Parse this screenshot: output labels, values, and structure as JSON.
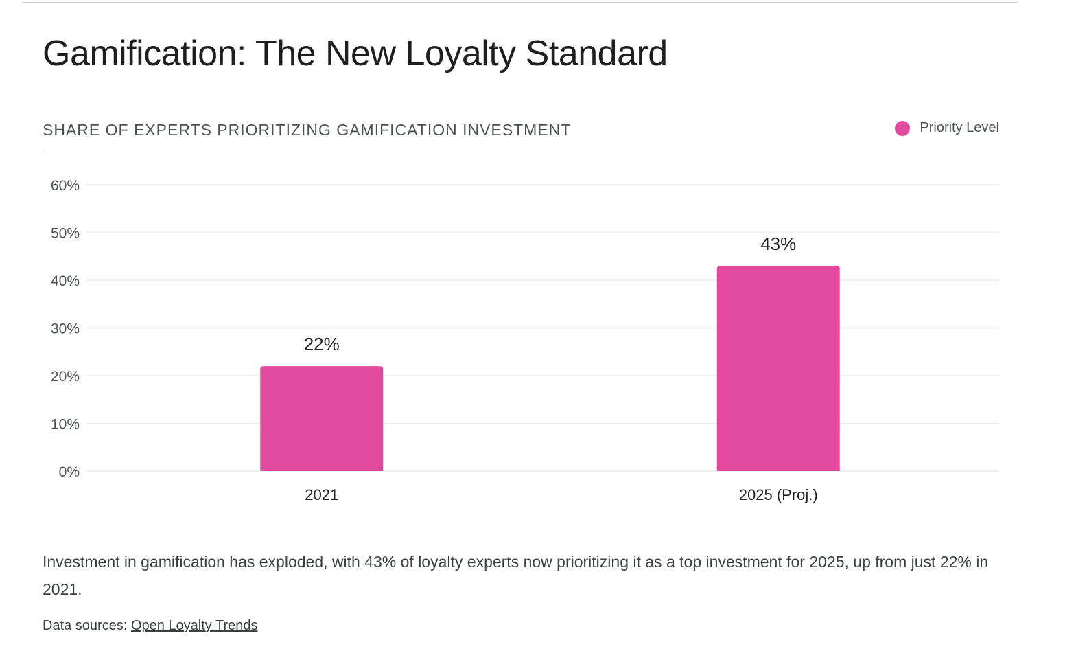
{
  "title": "Gamification: The New Loyalty Standard",
  "chart_data": {
    "type": "bar",
    "title": "SHARE OF EXPERTS PRIORITIZING GAMIFICATION INVESTMENT",
    "categories": [
      "2021",
      "2025 (Proj.)"
    ],
    "series": [
      {
        "name": "Priority Level",
        "values": [
          22,
          43
        ],
        "color": "#e24a9e"
      }
    ],
    "data_labels": [
      "22%",
      "43%"
    ],
    "ylim": [
      0,
      60
    ],
    "yticks": [
      0,
      10,
      20,
      30,
      40,
      50,
      60
    ],
    "ytick_labels": [
      "0%",
      "10%",
      "20%",
      "30%",
      "40%",
      "50%",
      "60%"
    ],
    "grid": true,
    "legend_position": "top-right"
  },
  "description": "Investment in gamification has exploded, with 43% of loyalty experts now prioritizing it as a top investment for 2025, up from just 22% in 2021.",
  "sources": {
    "label": "Data sources:",
    "link_text": "Open Loyalty Trends"
  }
}
